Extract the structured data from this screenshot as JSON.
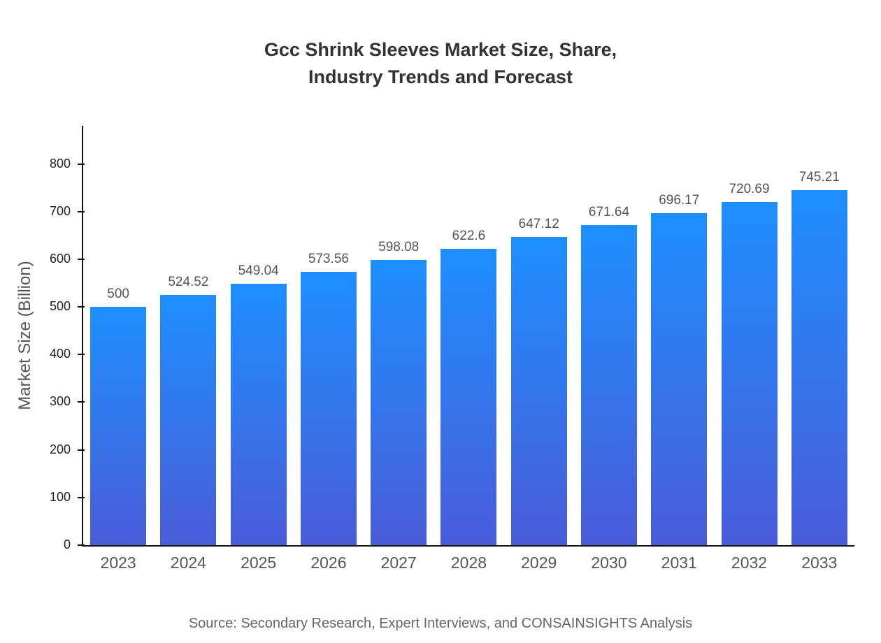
{
  "title": "Gcc Shrink Sleeves Market Size, Share,\nIndustry Trends and Forecast",
  "source_note": "Source: Secondary Research, Expert Interviews, and CONSAINSIGHTS Analysis",
  "chart_data": {
    "type": "bar",
    "title": "Gcc Shrink Sleeves Market Size, Share, Industry Trends and Forecast",
    "xlabel": "",
    "ylabel": "Market Size (Billion)",
    "categories": [
      "2023",
      "2024",
      "2025",
      "2026",
      "2027",
      "2028",
      "2029",
      "2030",
      "2031",
      "2032",
      "2033"
    ],
    "values": [
      500,
      524.52,
      549.04,
      573.56,
      598.08,
      622.6,
      647.12,
      671.64,
      696.17,
      720.69,
      745.21
    ],
    "data_labels": [
      "500",
      "524.52",
      "549.04",
      "573.56",
      "598.08",
      "622.6",
      "647.12",
      "671.64",
      "696.17",
      "720.69",
      "745.21"
    ],
    "ylim": [
      0,
      880
    ],
    "yticks": [
      0,
      100,
      200,
      300,
      400,
      500,
      600,
      700,
      800
    ],
    "grid": false,
    "legend": false,
    "colors": {
      "bar_top": "#1e8fff",
      "bar_bottom": "#4a5cd8",
      "axis": "#111111",
      "title_text": "#333333",
      "label_text": "#555555"
    }
  }
}
